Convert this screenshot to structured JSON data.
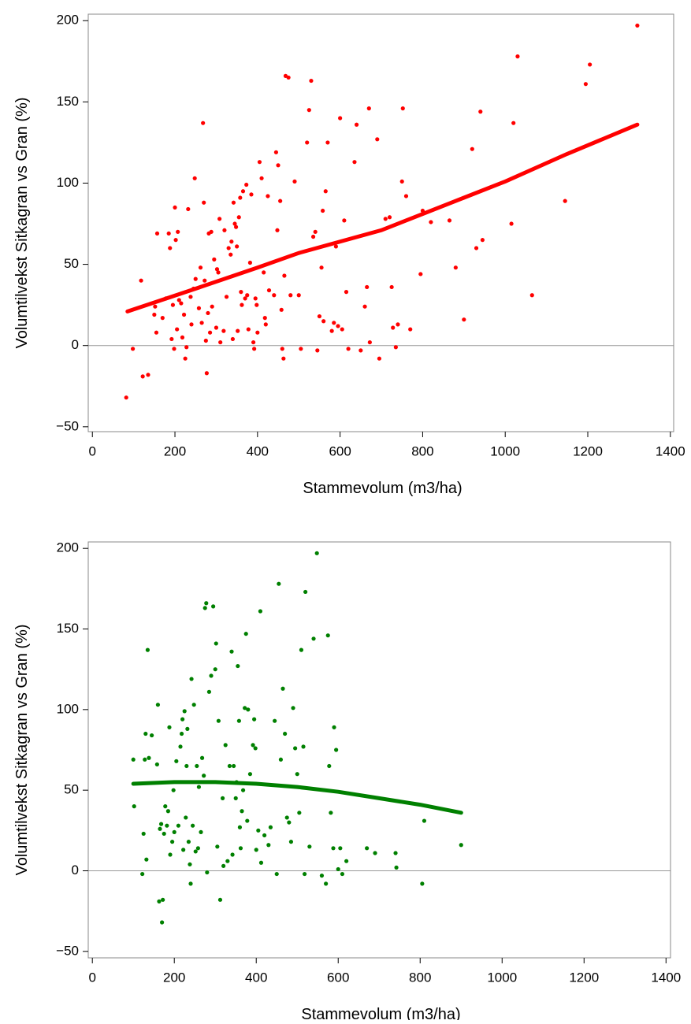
{
  "chart_data": [
    {
      "type": "scatter",
      "xlabel": "Stammevolum  (m3/ha)",
      "ylabel": "Volumtilvekst Sitkagran vs Gran  (%)",
      "xlim": [
        -10,
        1408
      ],
      "ylim": [
        -53,
        204
      ],
      "xticks": [
        0,
        200,
        400,
        600,
        800,
        1000,
        1200,
        1400
      ],
      "yticks": [
        {
          "value": -50,
          "label": "−50"
        },
        0,
        50,
        100,
        150,
        200
      ],
      "reference_line": 0,
      "points": {
        "color": "#ff0000",
        "x": [
          82,
          98,
          118,
          122,
          135,
          150,
          152,
          155,
          157,
          170,
          178,
          185,
          188,
          192,
          195,
          198,
          200,
          202,
          205,
          207,
          210,
          215,
          218,
          222,
          225,
          228,
          232,
          238,
          240,
          245,
          248,
          250,
          258,
          262,
          265,
          268,
          270,
          272,
          275,
          277,
          280,
          282,
          285,
          288,
          290,
          295,
          300,
          302,
          305,
          308,
          310,
          318,
          320,
          325,
          330,
          335,
          337,
          340,
          342,
          345,
          348,
          350,
          352,
          355,
          358,
          360,
          362,
          365,
          370,
          373,
          375,
          378,
          382,
          385,
          390,
          392,
          395,
          398,
          400,
          405,
          410,
          415,
          418,
          420,
          425,
          428,
          440,
          445,
          448,
          450,
          455,
          458,
          460,
          463,
          465,
          468,
          475,
          480,
          490,
          500,
          505,
          520,
          525,
          530,
          535,
          540,
          545,
          550,
          555,
          558,
          560,
          565,
          570,
          580,
          585,
          590,
          595,
          600,
          605,
          610,
          615,
          620,
          635,
          640,
          650,
          660,
          665,
          670,
          672,
          690,
          695,
          710,
          720,
          725,
          728,
          735,
          740,
          750,
          752,
          760,
          770,
          795,
          800,
          820,
          865,
          880,
          900,
          920,
          930,
          940,
          945,
          1015,
          1020,
          1030,
          1065,
          1145,
          1195,
          1205,
          1320
        ],
        "values": [
          -32,
          -2,
          40,
          -19,
          -18,
          19,
          24,
          8,
          69,
          17,
          29,
          69,
          60,
          4,
          25,
          -2,
          85,
          65,
          10,
          70,
          28,
          26,
          5,
          19,
          -8,
          -1,
          84,
          30,
          13,
          35,
          103,
          41,
          23,
          48,
          14,
          137,
          88,
          40,
          3,
          -17,
          20,
          69,
          8,
          70,
          24,
          53,
          11,
          47,
          45,
          78,
          2,
          9,
          71,
          30,
          60,
          56,
          64,
          4,
          88,
          75,
          73,
          61,
          9,
          79,
          91,
          33,
          25,
          95,
          29,
          99,
          31,
          10,
          51,
          93,
          2,
          -2,
          29,
          25,
          8,
          113,
          103,
          45,
          17,
          13,
          92,
          34,
          31,
          119,
          71,
          111,
          89,
          22,
          -2,
          -8,
          43,
          166,
          165,
          31,
          101,
          31,
          -2,
          125,
          145,
          163,
          67,
          70,
          -3,
          18,
          48,
          83,
          15,
          95,
          125,
          9,
          14,
          61,
          12,
          140,
          10,
          77,
          33,
          -2,
          113,
          136,
          -3,
          24,
          36,
          146,
          2,
          127,
          -8,
          78,
          79,
          36,
          11,
          -1,
          13,
          101,
          146,
          92,
          10,
          44,
          83,
          76,
          77,
          48,
          16,
          121,
          60,
          144,
          65,
          75,
          137,
          178,
          31,
          89,
          161,
          173,
          197
        ]
      },
      "fit": {
        "color": "#ff0000",
        "x": [
          85,
          250,
          400,
          500,
          700,
          900,
          1000,
          1150,
          1320
        ],
        "values": [
          21,
          35,
          48,
          57,
          71,
          91,
          101,
          118,
          136
        ]
      }
    },
    {
      "type": "scatter",
      "xlabel": "Stammevolum  (m3/ha)",
      "ylabel": "Volumtilvekst Sitkagran vs Gran (%)",
      "xlim": [
        -10,
        1411
      ],
      "ylim": [
        -54,
        204
      ],
      "xticks": [
        0,
        200,
        400,
        600,
        800,
        1000,
        1200,
        1400
      ],
      "yticks": [
        {
          "value": -50,
          "label": "−50"
        },
        0,
        50,
        100,
        150,
        200
      ],
      "reference_line": 0,
      "points": {
        "color": "#008000",
        "x": [
          100,
          102,
          122,
          125,
          128,
          130,
          132,
          135,
          138,
          145,
          158,
          160,
          163,
          165,
          168,
          170,
          172,
          175,
          178,
          182,
          185,
          188,
          190,
          195,
          198,
          200,
          205,
          210,
          215,
          218,
          220,
          222,
          225,
          228,
          230,
          232,
          235,
          238,
          240,
          242,
          245,
          248,
          252,
          255,
          258,
          260,
          265,
          268,
          272,
          275,
          278,
          280,
          285,
          290,
          295,
          300,
          302,
          305,
          308,
          312,
          318,
          320,
          325,
          330,
          335,
          340,
          342,
          345,
          350,
          352,
          355,
          358,
          360,
          362,
          365,
          368,
          372,
          375,
          378,
          380,
          385,
          392,
          395,
          398,
          400,
          405,
          410,
          412,
          420,
          430,
          435,
          445,
          450,
          455,
          460,
          465,
          470,
          475,
          480,
          485,
          490,
          495,
          500,
          505,
          510,
          515,
          518,
          520,
          530,
          540,
          548,
          560,
          570,
          575,
          578,
          582,
          588,
          590,
          595,
          600,
          605,
          610,
          620,
          670,
          690,
          740,
          742,
          805,
          810,
          900
        ],
        "values": [
          69,
          40,
          -2,
          23,
          69,
          85,
          7,
          137,
          70,
          84,
          66,
          103,
          -19,
          26,
          29,
          -32,
          -18,
          23,
          40,
          28,
          37,
          89,
          10,
          18,
          50,
          24,
          68,
          28,
          77,
          85,
          94,
          13,
          99,
          33,
          65,
          88,
          18,
          4,
          -8,
          119,
          28,
          103,
          12,
          65,
          14,
          52,
          24,
          70,
          59,
          163,
          166,
          -1,
          111,
          121,
          164,
          125,
          141,
          15,
          93,
          -18,
          45,
          3,
          78,
          6,
          65,
          136,
          10,
          65,
          45,
          55,
          127,
          93,
          27,
          14,
          37,
          50,
          101,
          147,
          31,
          100,
          60,
          78,
          94,
          76,
          13,
          25,
          161,
          5,
          22,
          16,
          27,
          93,
          -2,
          178,
          69,
          113,
          85,
          33,
          30,
          18,
          101,
          76,
          60,
          36,
          137,
          77,
          -2,
          173,
          15,
          144,
          197,
          -3,
          -8,
          146,
          65,
          36,
          14,
          89,
          75,
          1,
          14,
          -2,
          6,
          14,
          11,
          11,
          2,
          -8,
          31,
          16
        ]
      },
      "fit": {
        "color": "#008000",
        "x": [
          100,
          200,
          300,
          400,
          500,
          600,
          700,
          800,
          900
        ],
        "values": [
          54,
          55,
          55,
          54,
          52,
          49,
          45,
          41,
          36
        ]
      }
    }
  ]
}
